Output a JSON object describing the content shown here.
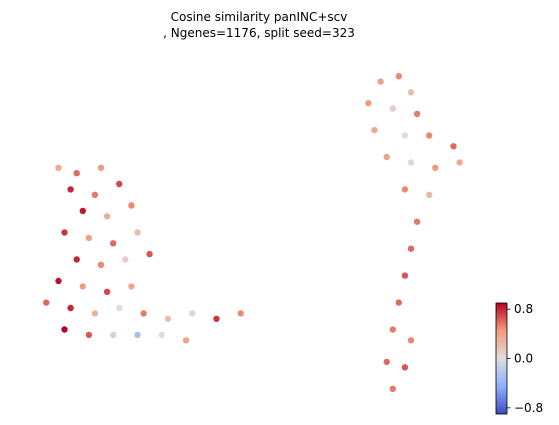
{
  "chart_data": {
    "type": "scatter",
    "title_lines": [
      "Cosine similarity panINC+scv",
      ", Ngenes=1176, split seed=323"
    ],
    "xlabel": "",
    "ylabel": "",
    "axes_visible": false,
    "grid": false,
    "colormap": "coolwarm",
    "colorbar": {
      "vmin": -0.9,
      "vmax": 0.9,
      "ticks": [
        0.8,
        0.0,
        -0.8
      ],
      "tick_labels": [
        "0.8",
        "0.0",
        "−0.8"
      ],
      "placement": "right"
    },
    "series": [
      {
        "cluster": "left",
        "points": [
          [
            -2.9,
            1.6,
            0.35
          ],
          [
            -2.6,
            1.5,
            0.6
          ],
          [
            -2.2,
            1.6,
            0.45
          ],
          [
            -2.7,
            1.2,
            0.8
          ],
          [
            -2.3,
            1.1,
            0.55
          ],
          [
            -1.9,
            1.3,
            0.7
          ],
          [
            -2.5,
            0.8,
            0.85
          ],
          [
            -2.1,
            0.7,
            0.3
          ],
          [
            -1.7,
            0.9,
            0.5
          ],
          [
            -2.8,
            0.4,
            0.75
          ],
          [
            -2.4,
            0.3,
            0.4
          ],
          [
            -2.0,
            0.2,
            0.6
          ],
          [
            -1.6,
            0.4,
            0.2
          ],
          [
            -2.6,
            -0.1,
            0.8
          ],
          [
            -2.2,
            -0.2,
            0.5
          ],
          [
            -1.8,
            -0.1,
            0.1
          ],
          [
            -1.4,
            0.0,
            0.65
          ],
          [
            -2.9,
            -0.5,
            0.85
          ],
          [
            -2.5,
            -0.6,
            0.45
          ],
          [
            -2.1,
            -0.7,
            0.7
          ],
          [
            -1.7,
            -0.6,
            0.35
          ],
          [
            -3.1,
            -0.9,
            0.6
          ],
          [
            -2.7,
            -1.0,
            0.8
          ],
          [
            -2.3,
            -1.1,
            0.3
          ],
          [
            -1.9,
            -1.0,
            0.0
          ],
          [
            -1.5,
            -1.1,
            0.55
          ],
          [
            -1.1,
            -1.2,
            0.2
          ],
          [
            -0.7,
            -1.1,
            0.05
          ],
          [
            -0.3,
            -1.2,
            0.75
          ],
          [
            0.1,
            -1.1,
            0.5
          ],
          [
            -2.8,
            -1.4,
            0.9
          ],
          [
            -2.4,
            -1.5,
            0.65
          ],
          [
            -2.0,
            -1.5,
            0.1
          ],
          [
            -1.6,
            -1.5,
            -0.3
          ],
          [
            -1.2,
            -1.5,
            0.0
          ],
          [
            -0.8,
            -1.6,
            0.4
          ]
        ]
      },
      {
        "cluster": "right",
        "points": [
          [
            2.4,
            3.2,
            0.4
          ],
          [
            2.7,
            3.3,
            0.5
          ],
          [
            2.9,
            3.0,
            0.2
          ],
          [
            2.2,
            2.8,
            0.45
          ],
          [
            2.6,
            2.7,
            0.1
          ],
          [
            3.0,
            2.6,
            0.55
          ],
          [
            2.3,
            2.3,
            0.35
          ],
          [
            2.8,
            2.2,
            0.0
          ],
          [
            3.2,
            2.2,
            0.5
          ],
          [
            3.6,
            2.0,
            0.6
          ],
          [
            2.5,
            1.8,
            0.4
          ],
          [
            2.9,
            1.7,
            0.05
          ],
          [
            3.3,
            1.6,
            0.45
          ],
          [
            3.7,
            1.7,
            0.35
          ],
          [
            2.8,
            1.2,
            0.5
          ],
          [
            3.2,
            1.1,
            0.25
          ],
          [
            3.0,
            0.6,
            0.55
          ],
          [
            2.9,
            0.1,
            0.6
          ],
          [
            2.8,
            -0.4,
            0.65
          ],
          [
            2.7,
            -0.9,
            0.6
          ],
          [
            2.6,
            -1.4,
            0.55
          ],
          [
            2.9,
            -1.6,
            0.5
          ],
          [
            2.5,
            -2.0,
            0.6
          ],
          [
            2.8,
            -2.1,
            0.65
          ],
          [
            2.6,
            -2.5,
            0.55
          ]
        ]
      }
    ]
  }
}
